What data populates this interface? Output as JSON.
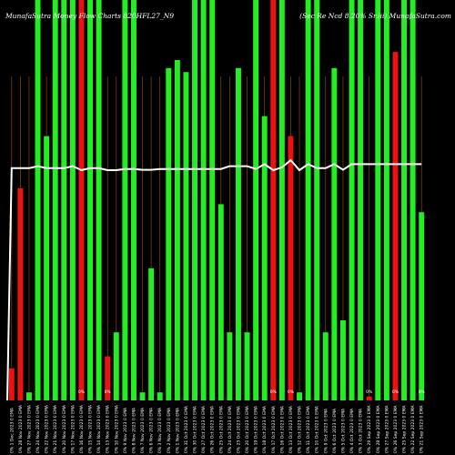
{
  "header": {
    "left": "MunafaSutra Money Flow Charts 820HFL27_N9",
    "right": "(Sec Re Ncd 8.20% Sr.iii) MunafaSutra.com"
  },
  "colors": {
    "background": "#000000",
    "up": "#22ee22",
    "down": "#ee1111",
    "separator": "#8a4a00",
    "line": "#ffffff"
  },
  "chart_data": {
    "type": "bar",
    "ylim": [
      0,
      100
    ],
    "categories": [
      "1 Dec 2023 0 EMA",
      "28 Nov 2023 0 EMA",
      "27 Nov 2023 0 EMA",
      "24 Nov 2023 0 EMA",
      "22 Nov 2023 0 EMA",
      "21 Nov 2023 0 EMA",
      "20 Nov 2023 0 EMA",
      "17 Nov 2023 0 EMA",
      "16 Nov 2023 0 EMA",
      "15 Nov 2023 0 EMA",
      "14 Nov 2023 0 EMA",
      "13 Nov 2023 0 EMA",
      "10 Nov 2023 0 EMA",
      "9 Nov 2023 0 EMA",
      "8 Nov 2023 0 EMA",
      "7 Nov 2023 0 EMA",
      "6 Nov 2023 0 EMA",
      "3 Nov 2023 0 EMA",
      "2 Nov 2023 0 EMA",
      "1 Nov 2023 0 EMA",
      "31 Oct 2023 0 EMA",
      "30 Oct 2023 0 EMA",
      "27 Oct 2023 0 EMA",
      "26 Oct 2023 0 EMA",
      "25 Oct 2023 0 EMA",
      "24 Oct 2023 0 EMA",
      "23 Oct 2023 0 EMA",
      "20 Oct 2023 0 EMA",
      "19 Oct 2023 0 EMA",
      "18 Oct 2023 0 EMA",
      "17 Oct 2023 0 EMA",
      "16 Oct 2023 0 EMA",
      "13 Oct 2023 0 EMA",
      "12 Oct 2023 0 EMA",
      "11 Oct 2023 0 EMA",
      "10 Oct 2023 0 EMA",
      "9 Oct 2023 0 EMA",
      "6 Oct 2023 0 EMA",
      "5 Oct 2023 0 EMA",
      "4 Oct 2023 0 EMA",
      "3 Oct 2023 0 EMA",
      "29 Sep 2023 0 EMA",
      "28 Sep 2023 0 EMA",
      "27 Sep 2023 0 EMA",
      "26 Sep 2023 0 EMA",
      "25 Sep 2023 0 EMA",
      "22 Sep 2023 0 EMA",
      "21 Sep 2023 0 EMA"
    ],
    "series": [
      {
        "values": [
          8,
          53,
          2,
          100,
          66,
          100,
          100,
          100,
          100,
          100,
          100,
          11,
          17,
          100,
          100,
          2,
          33,
          2,
          83,
          85,
          82,
          100,
          100,
          100,
          49,
          17,
          83,
          17,
          100,
          71,
          100,
          100,
          66,
          2,
          100,
          100,
          17,
          83,
          20,
          100,
          100,
          1,
          100,
          100,
          87,
          100,
          100,
          47
        ],
        "colors": [
          "down",
          "down",
          "up",
          "up",
          "up",
          "up",
          "up",
          "up",
          "down",
          "up",
          "up",
          "down",
          "up",
          "up",
          "up",
          "up",
          "up",
          "up",
          "up",
          "up",
          "up",
          "up",
          "up",
          "up",
          "up",
          "up",
          "up",
          "up",
          "up",
          "up",
          "down",
          "up",
          "down",
          "up",
          "up",
          "up",
          "up",
          "up",
          "up",
          "up",
          "up",
          "down",
          "up",
          "up",
          "down",
          "up",
          "up",
          "up"
        ]
      },
      {
        "values": [
          58,
          58,
          58,
          58.5,
          58,
          58,
          58,
          58.5,
          57.5,
          58,
          58,
          57.5,
          57.5,
          57.8,
          57.8,
          57.6,
          57.6,
          57.8,
          57.8,
          57.8,
          57.8,
          57.8,
          57.8,
          57.8,
          57.8,
          58.5,
          58.5,
          58.5,
          57.8,
          59,
          57.5,
          58.2,
          60,
          57.5,
          59,
          58,
          58,
          59,
          57.6,
          59,
          59,
          59,
          59,
          59,
          59,
          59,
          59,
          59
        ]
      }
    ],
    "x_tick_labels": [
      "0% 1 Dec 2023 0 EMA",
      "0% 28 Nov 2023 0 EMA",
      "0% 27 Nov 2023 0 EMA",
      "0% 24 Nov 2023 0 EMA",
      "0% 22 Nov 2023 0 EMA",
      "0% 21 Nov 2023 0 EMA",
      "0% 20 Nov 2023 0 EMA",
      "0% 17 Nov 2023 0 EMA",
      "0% 16 Nov 2023 0 EMA",
      "0% 15 Nov 2023 0 EMA",
      "0% 14 Nov 2023 0 EMA",
      "0% 13 Nov 2023 0 EMA",
      "0% 10 Nov 2023 0 EMA",
      "0% 9 Nov 2023 0 EMA",
      "0% 8 Nov 2023 0 EMA",
      "0% 7 Nov 2023 0 EMA",
      "0% 6 Nov 2023 0 EMA",
      "0% 3 Nov 2023 0 EMA",
      "0% 2 Nov 2023 0 EMA",
      "0% 1 Nov 2023 0 EMA",
      "0% 31 Oct 2023 0 EMA",
      "0% 30 Oct 2023 0 EMA",
      "0% 27 Oct 2023 0 EMA",
      "0% 26 Oct 2023 0 EMA",
      "0% 25 Oct 2023 0 EMA",
      "0% 24 Oct 2023 0 EMA",
      "0% 23 Oct 2023 0 EMA",
      "0% 20 Oct 2023 0 EMA",
      "0% 19 Oct 2023 0 EMA",
      "0% 18 Oct 2023 0 EMA",
      "0% 17 Oct 2023 0 EMA",
      "0% 16 Oct 2023 0 EMA",
      "0% 13 Oct 2023 0 EMA",
      "0% 12 Oct 2023 0 EMA",
      "0% 11 Oct 2023 0 EMA",
      "0% 10 Oct 2023 0 EMA",
      "0% 9 Oct 2023 0 EMA",
      "0% 6 Oct 2023 0 EMA",
      "0% 5 Oct 2023 0 EMA",
      "0% 4 Oct 2023 0 EMA",
      "0% 3 Oct 2023 0 EMA",
      "0% 29 Sep 2023 0 EMA",
      "0% 28 Sep 2023 0 EMA",
      "0% 27 Sep 2023 0 EMA",
      "0% 26 Sep 2023 0 EMA",
      "0% 25 Sep 2023 0 EMA",
      "0% 22 Sep 2023 0 EMA",
      "0% 21 Sep 2023 0 EMA"
    ],
    "marker_labels": [
      "0%",
      "0%",
      "0%",
      "0%",
      "0%",
      "0%",
      "0%"
    ],
    "marker_indices": [
      8,
      11,
      30,
      32,
      41,
      44,
      47
    ]
  }
}
